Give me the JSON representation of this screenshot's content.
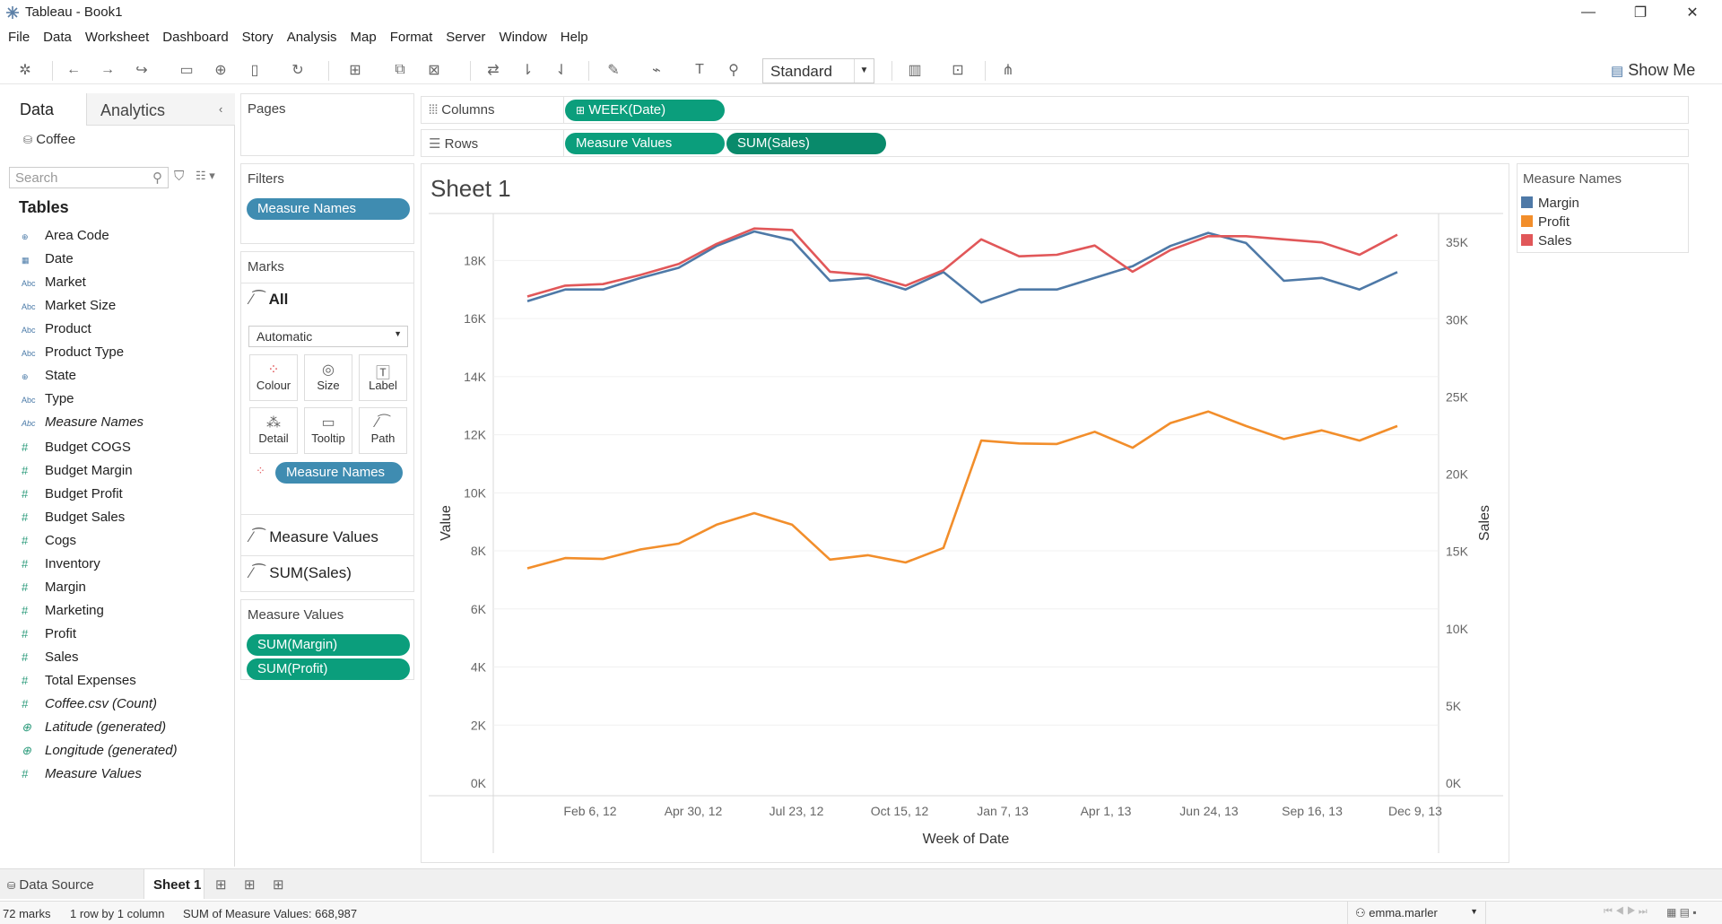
{
  "window": {
    "title": "Tableau - Book1"
  },
  "menu": [
    "File",
    "Data",
    "Worksheet",
    "Dashboard",
    "Story",
    "Analysis",
    "Map",
    "Format",
    "Server",
    "Window",
    "Help"
  ],
  "toolbar": {
    "view_select": "Standard",
    "show_me": "Show Me"
  },
  "left_pane": {
    "tabs": {
      "data": "Data",
      "analytics": "Analytics"
    },
    "datasource": "Coffee",
    "search_placeholder": "Search",
    "tables_heading": "Tables",
    "dimensions": [
      {
        "type": "geo",
        "name": "Area Code"
      },
      {
        "type": "date",
        "name": "Date"
      },
      {
        "type": "abc",
        "name": "Market"
      },
      {
        "type": "abc",
        "name": "Market Size"
      },
      {
        "type": "abc",
        "name": "Product"
      },
      {
        "type": "abc",
        "name": "Product Type"
      },
      {
        "type": "geo",
        "name": "State"
      },
      {
        "type": "abc",
        "name": "Type"
      },
      {
        "type": "abc",
        "name": "Measure Names",
        "italic": true
      }
    ],
    "measures": [
      {
        "name": "Budget COGS"
      },
      {
        "name": "Budget Margin"
      },
      {
        "name": "Budget Profit"
      },
      {
        "name": "Budget Sales"
      },
      {
        "name": "Cogs"
      },
      {
        "name": "Inventory"
      },
      {
        "name": "Margin"
      },
      {
        "name": "Marketing"
      },
      {
        "name": "Profit"
      },
      {
        "name": "Sales"
      },
      {
        "name": "Total Expenses"
      },
      {
        "name": "Coffee.csv (Count)",
        "italic": true
      },
      {
        "name": "Latitude (generated)",
        "italic": true,
        "geo": true
      },
      {
        "name": "Longitude (generated)",
        "italic": true,
        "geo": true
      },
      {
        "name": "Measure Values",
        "italic": true
      }
    ]
  },
  "cards": {
    "pages": "Pages",
    "filters": "Filters",
    "filter_pill": "Measure Names",
    "marks": "Marks",
    "marks_all": "All",
    "mark_type": "Automatic",
    "mark_buttons": [
      "Colour",
      "Size",
      "Label",
      "Detail",
      "Tooltip",
      "Path"
    ],
    "marks_color_pill": "Measure Names",
    "marks_measure_values": "Measure Values",
    "marks_sum_sales": "SUM(Sales)",
    "measure_values_card": "Measure Values",
    "mv_pills": [
      "SUM(Margin)",
      "SUM(Profit)"
    ]
  },
  "shelves": {
    "columns_label": "Columns",
    "columns_pill": "WEEK(Date)",
    "rows_label": "Rows",
    "rows_pills": [
      "Measure Values",
      "SUM(Sales)"
    ]
  },
  "sheet": {
    "title": "Sheet 1"
  },
  "legend": {
    "title": "Measure Names",
    "items": [
      {
        "name": "Margin",
        "color": "#4e79a7"
      },
      {
        "name": "Profit",
        "color": "#f28e2b"
      },
      {
        "name": "Sales",
        "color": "#e15759"
      }
    ]
  },
  "chart_data": {
    "type": "line",
    "title": "Sheet 1",
    "xlabel": "Week of Date",
    "ylabel": "Value",
    "y2label": "Sales",
    "x_ticks": [
      "Feb 6, 12",
      "Apr 30, 12",
      "Jul 23, 12",
      "Oct 15, 12",
      "Jan 7, 13",
      "Apr 1, 13",
      "Jun 24, 13",
      "Sep 16, 13",
      "Dec 9, 13"
    ],
    "y_ticks": [
      "0K",
      "2K",
      "4K",
      "6K",
      "8K",
      "10K",
      "12K",
      "14K",
      "16K",
      "18K"
    ],
    "y2_ticks": [
      "0K",
      "5K",
      "10K",
      "15K",
      "20K",
      "25K",
      "30K",
      "35K"
    ],
    "ylim": [
      0,
      19000
    ],
    "y2lim": [
      0,
      36000
    ],
    "x_count": 24,
    "series": [
      {
        "name": "Margin",
        "axis": "left",
        "color": "#4e79a7",
        "values": [
          16600,
          17000,
          17000,
          17400,
          17750,
          18500,
          19000,
          18700,
          17300,
          17400,
          17000,
          17600,
          16550,
          17000,
          17000,
          17400,
          17800,
          18500,
          18950,
          18600,
          17300,
          17400,
          17000,
          17600
        ]
      },
      {
        "name": "Profit",
        "axis": "left",
        "color": "#f28e2b",
        "values": [
          7400,
          7750,
          7720,
          8050,
          8250,
          8900,
          9300,
          8900,
          7700,
          7850,
          7600,
          8100,
          11800,
          11700,
          11680,
          12100,
          11550,
          12400,
          12800,
          12300,
          11850,
          12150,
          11800,
          12300
        ]
      },
      {
        "name": "Sales",
        "axis": "right",
        "color": "#e15759",
        "values": [
          31500,
          32200,
          32300,
          32900,
          33600,
          34900,
          35900,
          35800,
          33100,
          32900,
          32200,
          33200,
          35200,
          34100,
          34200,
          34800,
          33100,
          34500,
          35400,
          35400,
          35200,
          35000,
          34200,
          35500
        ]
      }
    ]
  },
  "tabs": {
    "data_source": "Data Source",
    "sheet": "Sheet 1"
  },
  "status": {
    "marks": "72 marks",
    "rows_cols": "1 row by 1 column",
    "sum": "SUM of Measure Values: 668,987",
    "user": "emma.marler"
  }
}
